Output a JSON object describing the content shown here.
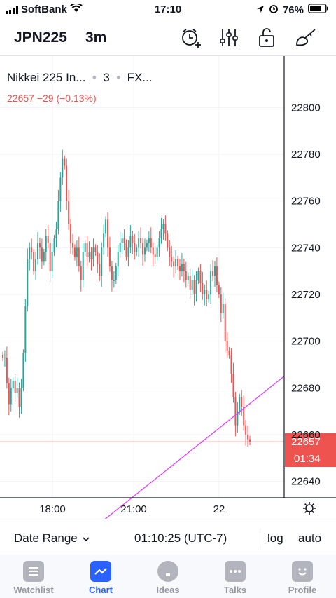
{
  "status_bar": {
    "carrier": "SoftBank",
    "time": "17:10",
    "battery": "76%"
  },
  "toolbar": {
    "symbol": "JPN225",
    "interval": "3m"
  },
  "legend": {
    "name": "Nikkei 225 In...",
    "interval": "3",
    "exchange": "FX...",
    "last": "22657",
    "change": "−29",
    "change_pct": "(−0.13%)"
  },
  "price_axis": {
    "ticks": [
      "22800",
      "22780",
      "22760",
      "22740",
      "22720",
      "22700",
      "22680",
      "22660",
      "22640"
    ],
    "last_price_label": "22657",
    "countdown_label": "01:34"
  },
  "time_axis": {
    "ticks": [
      "18:00",
      "21:00",
      "22"
    ]
  },
  "range_bar": {
    "date_range": "Date Range",
    "clock": "01:10:25 (UTC-7)",
    "log": "log",
    "auto": "auto"
  },
  "tabs": [
    {
      "label": "Watchlist",
      "icon": "list-icon"
    },
    {
      "label": "Chart",
      "icon": "chart-icon"
    },
    {
      "label": "Ideas",
      "icon": "bulb-icon"
    },
    {
      "label": "Talks",
      "icon": "chat-icon"
    },
    {
      "label": "Profile",
      "icon": "smile-icon"
    }
  ],
  "colors": {
    "up": "#26a69a",
    "down": "#ef5350",
    "trendline": "#e040fb",
    "accent": "#2962ff"
  },
  "chart_data": {
    "type": "candlestick",
    "ylim": [
      22633,
      22822
    ],
    "last_price": 22657,
    "candle_close_trace": [
      22693,
      22693,
      22682,
      22673,
      22680,
      22683,
      22678,
      22680,
      22672,
      22680,
      22695,
      22715,
      22735,
      22740,
      22738,
      22730,
      22735,
      22742,
      22740,
      22734,
      22738,
      22745,
      22742,
      22730,
      22738,
      22744,
      22748,
      22760,
      22770,
      22778,
      22775,
      22760,
      22750,
      22742,
      22740,
      22736,
      22740,
      22732,
      22726,
      22738,
      22742,
      22736,
      22738,
      22735,
      22740,
      22738,
      22733,
      22728,
      22740,
      22746,
      22752,
      22740,
      22732,
      22726,
      22726,
      22732,
      22738,
      22742,
      22744,
      22742,
      22736,
      22740,
      22745,
      22742,
      22738,
      22740,
      22744,
      22742,
      22737,
      22740,
      22742,
      22744,
      22740,
      22737,
      22736,
      22740,
      22744,
      22748,
      22750,
      22746,
      22740,
      22736,
      22734,
      22732,
      22735,
      22732,
      22730,
      22733,
      22730,
      22726,
      22728,
      22722,
      22726,
      22720,
      22726,
      22730,
      22725,
      22720,
      22722,
      22718,
      22720,
      22730,
      22728,
      22732,
      22724,
      22720,
      22712,
      22716,
      22700,
      22696,
      22694,
      22686,
      22676,
      22664,
      22670,
      22676,
      22672,
      22664,
      22660,
      22658,
      22657
    ],
    "trendline": {
      "start_price": 22620,
      "end_price": 22685
    }
  }
}
